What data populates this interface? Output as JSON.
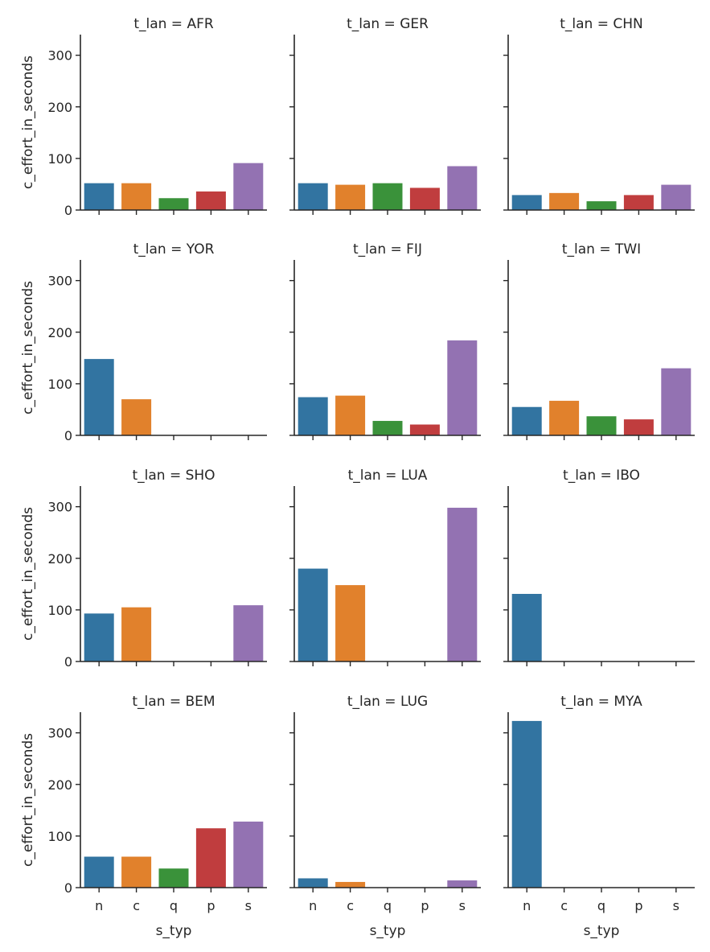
{
  "colors": {
    "n": "#3274a1",
    "c": "#e1812c",
    "q": "#3a923a",
    "p": "#c03d3e",
    "s": "#9372b2"
  },
  "chart_data": {
    "type": "bar",
    "layout": "facet-grid",
    "facet_var": "t_lan",
    "categories": [
      "n",
      "c",
      "q",
      "p",
      "s"
    ],
    "xlabel": "s_typ",
    "ylabel": "c_effort_in_seconds",
    "ylim": [
      0,
      340
    ],
    "yticks": [
      0,
      100,
      200,
      300
    ],
    "sharey": true,
    "grid": false,
    "panels": [
      {
        "title": "t_lan = AFR",
        "values": [
          52,
          52,
          23,
          36,
          91
        ]
      },
      {
        "title": "t_lan = GER",
        "values": [
          52,
          49,
          52,
          43,
          85
        ]
      },
      {
        "title": "t_lan = CHN",
        "values": [
          29,
          33,
          17,
          29,
          49
        ]
      },
      {
        "title": "t_lan = YOR",
        "values": [
          148,
          70,
          null,
          null,
          null
        ]
      },
      {
        "title": "t_lan = FIJ",
        "values": [
          74,
          77,
          28,
          21,
          184
        ]
      },
      {
        "title": "t_lan = TWI",
        "values": [
          55,
          67,
          37,
          31,
          130
        ]
      },
      {
        "title": "t_lan = SHO",
        "values": [
          93,
          105,
          null,
          null,
          109
        ]
      },
      {
        "title": "t_lan = LUA",
        "values": [
          180,
          148,
          null,
          null,
          298
        ]
      },
      {
        "title": "t_lan = IBO",
        "values": [
          131,
          null,
          null,
          null,
          null
        ]
      },
      {
        "title": "t_lan = BEM",
        "values": [
          60,
          60,
          37,
          115,
          128
        ]
      },
      {
        "title": "t_lan = LUG",
        "values": [
          18,
          11,
          null,
          null,
          14
        ]
      },
      {
        "title": "t_lan = MYA",
        "values": [
          323,
          null,
          null,
          null,
          null
        ]
      }
    ]
  }
}
